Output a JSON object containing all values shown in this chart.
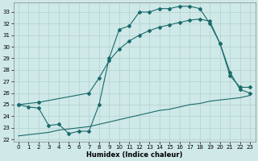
{
  "title": "",
  "xlabel": "Humidex (Indice chaleur)",
  "ylabel": "",
  "bg_color": "#cfe8e8",
  "grid_color": "#b8d4d4",
  "line_color": "#1a6b6b",
  "xlim": [
    -0.5,
    23.5
  ],
  "ylim": [
    21.8,
    33.8
  ],
  "yticks": [
    22,
    23,
    24,
    25,
    26,
    27,
    28,
    29,
    30,
    31,
    32,
    33
  ],
  "xticks": [
    0,
    1,
    2,
    3,
    4,
    5,
    6,
    7,
    8,
    9,
    10,
    11,
    12,
    13,
    14,
    15,
    16,
    17,
    18,
    19,
    20,
    21,
    22,
    23
  ],
  "line1_x": [
    0,
    1,
    2,
    3,
    4,
    5,
    6,
    7,
    8,
    9,
    10,
    11,
    12,
    13,
    14,
    15,
    16,
    17,
    18,
    19,
    20,
    21,
    22,
    23
  ],
  "line1_y": [
    25.0,
    24.8,
    24.7,
    23.2,
    23.3,
    22.5,
    22.7,
    22.7,
    25.0,
    29.0,
    31.5,
    31.8,
    33.0,
    33.0,
    33.3,
    33.3,
    33.5,
    33.5,
    33.3,
    32.0,
    30.3,
    27.5,
    26.5,
    26.5
  ],
  "line2_x": [
    0,
    2,
    7,
    8,
    9,
    10,
    11,
    12,
    13,
    14,
    15,
    16,
    17,
    18,
    19,
    20,
    21,
    22,
    23
  ],
  "line2_y": [
    25.0,
    25.2,
    26.0,
    27.3,
    28.8,
    29.8,
    30.5,
    31.0,
    31.4,
    31.7,
    31.9,
    32.1,
    32.3,
    32.4,
    32.2,
    30.3,
    27.8,
    26.3,
    26.0
  ],
  "line3_x": [
    0,
    1,
    2,
    3,
    4,
    5,
    6,
    7,
    8,
    9,
    10,
    11,
    12,
    13,
    14,
    15,
    16,
    17,
    18,
    19,
    20,
    21,
    22,
    23
  ],
  "line3_y": [
    22.3,
    22.4,
    22.5,
    22.6,
    22.8,
    22.9,
    23.0,
    23.1,
    23.3,
    23.5,
    23.7,
    23.9,
    24.1,
    24.3,
    24.5,
    24.6,
    24.8,
    25.0,
    25.1,
    25.3,
    25.4,
    25.5,
    25.6,
    25.8
  ]
}
